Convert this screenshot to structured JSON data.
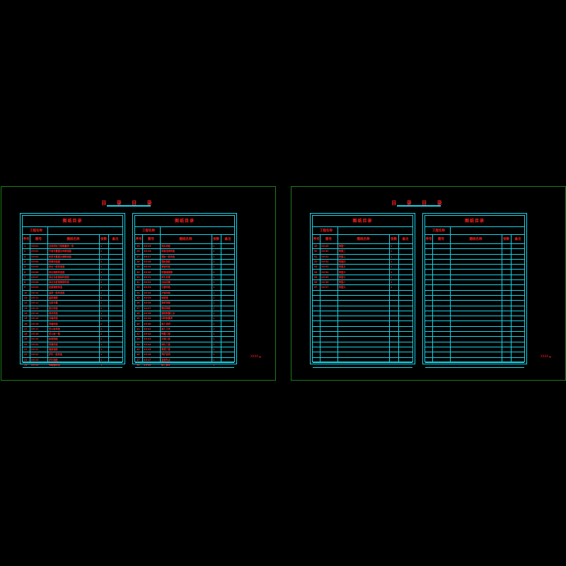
{
  "sheets": [
    {
      "title": "目 录 目 录",
      "stamp": "XXXX",
      "tables": [
        {
          "title": "图纸目录",
          "project": "工程名称",
          "headers": [
            "序号",
            "图号",
            "图纸名称",
            "张数",
            "备注"
          ],
          "rows": [
            [
              "1",
              "XX-01",
              "总说明及工程数量表一览",
              "1"
            ],
            [
              "2",
              "XX-02",
              "平面布置图及纵断面图",
              "1"
            ],
            [
              "3",
              "XX-03",
              "桥型布置图及横断面图",
              "1"
            ],
            [
              "4",
              "XX-04",
              "桥墩构造图",
              "1"
            ],
            [
              "5",
              "XX-05",
              "桥台一般构造图",
              "1"
            ],
            [
              "6",
              "XX-06",
              "桥台钢筋构造图",
              "1"
            ],
            [
              "7",
              "XX-07",
              "承台及桩基础构造图",
              "1"
            ],
            [
              "8",
              "XX-08",
              "承台及桩基钢筋构造",
              "1"
            ],
            [
              "9",
              "XX-09",
              "桩基钢筋构造",
              "1"
            ],
            [
              "10",
              "XX-10",
              "盖梁一般构造图",
              "1"
            ],
            [
              "11",
              "XX-11",
              "盖梁钢筋",
              "1"
            ],
            [
              "12",
              "XX-12",
              "支座布置",
              "1"
            ],
            [
              "13",
              "XX-13",
              "垫石构造",
              "1"
            ],
            [
              "14",
              "XX-14",
              "挡块构造",
              "1"
            ],
            [
              "15",
              "XX-15",
              "耳墙构造",
              "1"
            ],
            [
              "16",
              "XX-16",
              "背墙构造",
              "1"
            ],
            [
              "17",
              "XX-17",
              "空心板构造",
              "1"
            ],
            [
              "18",
              "XX-18",
              "空心板一般",
              "1"
            ],
            [
              "19",
              "XX-19",
              "板钢筋图",
              "1"
            ],
            [
              "20",
              "XX-20",
              "铰缝构造",
              "1"
            ],
            [
              "21",
              "XX-21",
              "铺装钢筋",
              "1"
            ],
            [
              "22",
              "XX-22",
              "护栏一般构造",
              "1"
            ],
            [
              "23",
              "XX-23",
              "护栏钢筋",
              "1"
            ],
            [
              "24",
              "XX-24",
              "伸缩缝构造",
              "1"
            ]
          ]
        },
        {
          "title": "图纸目录",
          "project": "工程名称",
          "headers": [
            "序号",
            "图号",
            "图纸名称",
            "张数",
            "备注"
          ],
          "rows": [
            [
              "25",
              "XX-25",
              "排水构造",
              "1"
            ],
            [
              "26",
              "XX-26",
              "桥面连续构造",
              "1"
            ],
            [
              "27",
              "XX-27",
              "搭板一般构造",
              "1"
            ],
            [
              "28",
              "XX-28",
              "搭板钢筋",
              "1"
            ],
            [
              "29",
              "XX-29",
              "锥坡构造",
              "1"
            ],
            [
              "30",
              "XX-30",
              "防撞墙钢筋",
              "1"
            ],
            [
              "31",
              "XX-31",
              "桥头处理",
              "1"
            ],
            [
              "32",
              "XX-32",
              "台后回填",
              "1"
            ],
            [
              "33",
              "XX-33",
              "引道构造",
              "1"
            ],
            [
              "34",
              "XX-34",
              "护坡构造",
              "1"
            ],
            [
              "35",
              "XX-35",
              "检修道",
              "1"
            ],
            [
              "36",
              "XX-36",
              "照明预埋",
              "1"
            ],
            [
              "37",
              "XX-37",
              "管线预埋",
              "1"
            ],
            [
              "38",
              "XX-38",
              "钢筋数量汇总",
              "1"
            ],
            [
              "39",
              "XX-39",
              "材料数量表",
              "1"
            ],
            [
              "40",
              "XX-40",
              "施工说明",
              "1"
            ],
            [
              "41",
              "XX-41",
              "施工工序",
              "1"
            ],
            [
              "42",
              "XX-42",
              "附属工程",
              "1"
            ],
            [
              "43",
              "XX-43",
              "交通工程",
              "1"
            ],
            [
              "44",
              "XX-44",
              "绿化工程",
              "1"
            ],
            [
              "45",
              "XX-45",
              "景观工程",
              "1"
            ],
            [
              "46",
              "XX-46",
              "养护说明",
              "1"
            ],
            [
              "47",
              "XX-47",
              "监测布点",
              "1"
            ],
            [
              "48",
              "XX-48",
              "竣工要求",
              "1"
            ]
          ]
        }
      ]
    },
    {
      "title": "目 录 目 录",
      "stamp": "XXXX",
      "tables": [
        {
          "title": "图纸目录",
          "project": "工程名称",
          "headers": [
            "序号",
            "图号",
            "图纸名称",
            "张数",
            "备注"
          ],
          "rows": [
            [
              "49",
              "XX-49",
              "附图一",
              "1"
            ],
            [
              "50",
              "XX-50",
              "附图二",
              "1"
            ],
            [
              "51",
              "XX-51",
              "附图三",
              "1"
            ],
            [
              "52",
              "XX-52",
              "附图四",
              "1"
            ],
            [
              "53",
              "XX-53",
              "附图五",
              "1"
            ],
            [
              "54",
              "XX-54",
              "附图六",
              "1"
            ],
            [
              "55",
              "XX-55",
              "附图七",
              "1"
            ],
            [
              "56",
              "XX-56",
              "附图八",
              "1"
            ],
            [
              "57",
              "XX-57",
              "附图九",
              "1"
            ],
            [
              "",
              "",
              "",
              ""
            ],
            [
              "",
              "",
              "",
              ""
            ],
            [
              "",
              "",
              "",
              ""
            ],
            [
              "",
              "",
              "",
              ""
            ],
            [
              "",
              "",
              "",
              ""
            ],
            [
              "",
              "",
              "",
              ""
            ],
            [
              "",
              "",
              "",
              ""
            ],
            [
              "",
              "",
              "",
              ""
            ],
            [
              "",
              "",
              "",
              ""
            ],
            [
              "",
              "",
              "",
              ""
            ],
            [
              "",
              "",
              "",
              ""
            ],
            [
              "",
              "",
              "",
              ""
            ],
            [
              "",
              "",
              "",
              ""
            ],
            [
              "",
              "",
              "",
              ""
            ],
            [
              "",
              "",
              "",
              ""
            ]
          ]
        },
        {
          "title": "图纸目录",
          "project": "工程名称",
          "headers": [
            "序号",
            "图号",
            "图纸名称",
            "张数",
            "备注"
          ],
          "rows": [
            [
              "",
              "",
              "",
              ""
            ],
            [
              "",
              "",
              "",
              ""
            ],
            [
              "",
              "",
              "",
              ""
            ],
            [
              "",
              "",
              "",
              ""
            ],
            [
              "",
              "",
              "",
              ""
            ],
            [
              "",
              "",
              "",
              ""
            ],
            [
              "",
              "",
              "",
              ""
            ],
            [
              "",
              "",
              "",
              ""
            ],
            [
              "",
              "",
              "",
              ""
            ],
            [
              "",
              "",
              "",
              ""
            ],
            [
              "",
              "",
              "",
              ""
            ],
            [
              "",
              "",
              "",
              ""
            ],
            [
              "",
              "",
              "",
              ""
            ],
            [
              "",
              "",
              "",
              ""
            ],
            [
              "",
              "",
              "",
              ""
            ],
            [
              "",
              "",
              "",
              ""
            ],
            [
              "",
              "",
              "",
              ""
            ],
            [
              "",
              "",
              "",
              ""
            ],
            [
              "",
              "",
              "",
              ""
            ],
            [
              "",
              "",
              "",
              ""
            ],
            [
              "",
              "",
              "",
              ""
            ],
            [
              "",
              "",
              "",
              ""
            ],
            [
              "",
              "",
              "",
              ""
            ],
            [
              "",
              "",
              "",
              ""
            ]
          ]
        }
      ]
    }
  ],
  "colors": {
    "frame": "#1f7a1f",
    "line": "#19d3e6",
    "text": "#ff2020",
    "background": "#000000"
  }
}
